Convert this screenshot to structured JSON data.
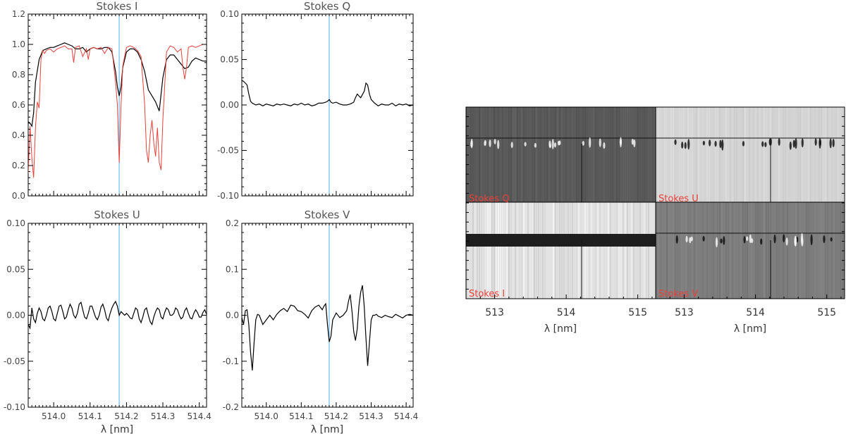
{
  "colors": {
    "axis": "#000000",
    "observed": "#000000",
    "reference": "#e8403a",
    "marker": "#4fb0e8",
    "image_label": "#e8403a"
  },
  "chart_data": [
    {
      "type": "line",
      "title": "Stokes I",
      "xlabel": "",
      "ylabel": "",
      "xlim": [
        513.93,
        514.42
      ],
      "ylim": [
        0.0,
        1.2
      ],
      "yticks": [
        0.0,
        0.2,
        0.4,
        0.6,
        0.8,
        1.0,
        1.2
      ],
      "ytick_labels": [
        "0.0",
        "0.2",
        "0.4",
        "0.6",
        "0.8",
        "1.0",
        "1.2"
      ],
      "xticks": [
        514.0,
        514.1,
        514.2,
        514.3,
        514.4
      ],
      "xtick_labels": [],
      "marker_x": 514.18,
      "series": [
        {
          "style": "observed",
          "x": [
            513.93,
            513.935,
            513.94,
            513.945,
            513.95,
            513.96,
            513.97,
            513.98,
            513.99,
            514.0,
            514.01,
            514.02,
            514.03,
            514.04,
            514.05,
            514.06,
            514.07,
            514.08,
            514.09,
            514.1,
            514.11,
            514.12,
            514.13,
            514.14,
            514.15,
            514.16,
            514.17,
            514.175,
            514.18,
            514.185,
            514.19,
            514.2,
            514.21,
            514.22,
            514.23,
            514.24,
            514.25,
            514.26,
            514.27,
            514.28,
            514.29,
            514.3,
            514.31,
            514.32,
            514.33,
            514.34,
            514.35,
            514.36,
            514.37,
            514.38,
            514.39,
            514.4,
            514.41,
            514.42
          ],
          "y": [
            0.49,
            0.48,
            0.46,
            0.55,
            0.75,
            0.9,
            0.96,
            0.97,
            0.98,
            0.98,
            0.99,
            1.0,
            1.01,
            1.0,
            0.99,
            0.97,
            0.97,
            0.98,
            0.95,
            0.97,
            0.98,
            0.97,
            0.97,
            0.98,
            0.98,
            0.95,
            0.82,
            0.72,
            0.66,
            0.72,
            0.85,
            0.95,
            0.97,
            0.97,
            0.95,
            0.9,
            0.82,
            0.7,
            0.66,
            0.62,
            0.56,
            0.78,
            0.9,
            0.93,
            0.93,
            0.9,
            0.87,
            0.84,
            0.85,
            0.89,
            0.91,
            0.9,
            0.89,
            0.89
          ]
        },
        {
          "style": "reference",
          "x": [
            513.93,
            513.935,
            513.94,
            513.945,
            513.95,
            513.955,
            513.96,
            513.965,
            513.97,
            513.975,
            513.98,
            513.99,
            514.0,
            514.01,
            514.02,
            514.03,
            514.04,
            514.05,
            514.055,
            514.06,
            514.07,
            514.08,
            514.09,
            514.095,
            514.1,
            514.11,
            514.12,
            514.13,
            514.14,
            514.15,
            514.16,
            514.17,
            514.175,
            514.18,
            514.185,
            514.19,
            514.2,
            514.21,
            514.22,
            514.23,
            514.24,
            514.25,
            514.255,
            514.26,
            514.265,
            514.27,
            514.275,
            514.28,
            514.285,
            514.29,
            514.295,
            514.3,
            514.31,
            514.32,
            514.33,
            514.34,
            514.35,
            514.355,
            514.36,
            514.365,
            514.37,
            514.38,
            514.39,
            514.4,
            514.41,
            514.42
          ],
          "y": [
            0.15,
            0.46,
            0.25,
            0.12,
            0.45,
            0.62,
            0.58,
            0.9,
            0.96,
            0.94,
            0.96,
            0.97,
            0.95,
            0.97,
            0.98,
            0.99,
            0.97,
            0.97,
            0.88,
            0.98,
            0.99,
            0.92,
            0.97,
            0.9,
            0.97,
            0.98,
            0.97,
            0.98,
            0.94,
            0.98,
            0.97,
            0.75,
            0.6,
            0.22,
            0.6,
            0.86,
            0.98,
            0.99,
            0.98,
            0.96,
            0.92,
            0.6,
            0.3,
            0.22,
            0.4,
            0.5,
            0.35,
            0.26,
            0.45,
            0.22,
            0.17,
            0.5,
            0.95,
            0.99,
            0.98,
            0.95,
            0.97,
            0.85,
            0.77,
            0.85,
            0.98,
            0.99,
            0.98,
            0.99,
            1.0,
            1.0
          ]
        }
      ]
    },
    {
      "type": "line",
      "title": "Stokes Q",
      "xlabel": "",
      "ylabel": "",
      "xlim": [
        513.93,
        514.42
      ],
      "ylim": [
        -0.1,
        0.1
      ],
      "yticks": [
        -0.1,
        -0.05,
        0.0,
        0.05,
        0.1
      ],
      "ytick_labels": [
        "-0.10",
        "-0.05",
        "0.00",
        "0.05",
        "0.10"
      ],
      "xticks": [
        514.0,
        514.1,
        514.2,
        514.3,
        514.4
      ],
      "xtick_labels": [],
      "marker_x": 514.18,
      "series": [
        {
          "style": "observed",
          "x": [
            513.93,
            513.935,
            513.94,
            513.945,
            513.95,
            513.955,
            513.96,
            513.97,
            513.98,
            513.99,
            514.0,
            514.01,
            514.02,
            514.03,
            514.04,
            514.05,
            514.06,
            514.07,
            514.08,
            514.09,
            514.1,
            514.11,
            514.12,
            514.13,
            514.14,
            514.15,
            514.16,
            514.17,
            514.175,
            514.18,
            514.185,
            514.19,
            514.2,
            514.21,
            514.22,
            514.23,
            514.24,
            514.25,
            514.255,
            514.26,
            514.265,
            514.27,
            514.28,
            514.285,
            514.29,
            514.295,
            514.3,
            514.31,
            514.32,
            514.33,
            514.34,
            514.35,
            514.36,
            514.37,
            514.38,
            514.39,
            514.4,
            514.41,
            514.42
          ],
          "y": [
            0.027,
            0.026,
            0.024,
            0.022,
            0.012,
            0.004,
            0.002,
            0.0,
            0.001,
            -0.001,
            0.001,
            0.0,
            -0.001,
            0.001,
            0.0,
            0.001,
            0.0,
            -0.001,
            0.001,
            0.0,
            0.002,
            0.0,
            0.001,
            -0.001,
            0.0,
            0.002,
            0.002,
            0.003,
            0.004,
            0.006,
            0.003,
            0.002,
            0.003,
            0.001,
            0.0,
            0.0,
            0.001,
            0.003,
            0.008,
            0.012,
            0.01,
            0.008,
            0.015,
            0.024,
            0.022,
            0.012,
            0.006,
            0.002,
            -0.001,
            0.001,
            0.0,
            0.0,
            0.002,
            -0.001,
            0.001,
            0.0,
            0.001,
            -0.001,
            0.0
          ]
        }
      ]
    },
    {
      "type": "line",
      "title": "Stokes U",
      "xlabel": "λ [nm]",
      "ylabel": "",
      "xlim": [
        513.93,
        514.42
      ],
      "ylim": [
        -0.1,
        0.1
      ],
      "yticks": [
        -0.1,
        -0.05,
        0.0,
        0.05,
        0.1
      ],
      "ytick_labels": [
        "-0.10",
        "-0.05",
        "0.00",
        "0.05",
        "0.10"
      ],
      "xticks": [
        514.0,
        514.1,
        514.2,
        514.3,
        514.4
      ],
      "xtick_labels": [
        "514.0",
        "514.1",
        "514.2",
        "514.3",
        "514.4"
      ],
      "marker_x": 514.18,
      "series": [
        {
          "style": "observed",
          "x": [
            513.93,
            513.935,
            513.94,
            513.945,
            513.95,
            513.955,
            513.96,
            513.965,
            513.97,
            513.975,
            513.98,
            513.985,
            513.99,
            513.995,
            514.0,
            514.005,
            514.01,
            514.015,
            514.02,
            514.025,
            514.03,
            514.035,
            514.04,
            514.045,
            514.05,
            514.055,
            514.06,
            514.065,
            514.07,
            514.075,
            514.08,
            514.085,
            514.09,
            514.095,
            514.1,
            514.105,
            514.11,
            514.115,
            514.12,
            514.125,
            514.13,
            514.135,
            514.14,
            514.145,
            514.15,
            514.155,
            514.16,
            514.165,
            514.17,
            514.175,
            514.18,
            514.185,
            514.19,
            514.195,
            514.2,
            514.205,
            514.21,
            514.215,
            514.22,
            514.225,
            514.23,
            514.235,
            514.24,
            514.245,
            514.25,
            514.255,
            514.26,
            514.265,
            514.27,
            514.275,
            514.28,
            514.285,
            514.29,
            514.295,
            514.3,
            514.305,
            514.31,
            514.315,
            514.32,
            514.325,
            514.33,
            514.335,
            514.34,
            514.345,
            514.35,
            514.355,
            514.36,
            514.365,
            514.37,
            514.375,
            514.38,
            514.385,
            514.39,
            514.395,
            514.4,
            514.405,
            514.41,
            514.415,
            514.42
          ],
          "y": [
            -0.01,
            -0.014,
            0.008,
            -0.004,
            -0.008,
            0.002,
            0.008,
            0.004,
            -0.004,
            -0.006,
            0.0,
            0.008,
            0.01,
            0.004,
            -0.004,
            -0.006,
            0.002,
            0.01,
            0.011,
            0.004,
            -0.004,
            -0.002,
            0.006,
            0.012,
            0.008,
            0.0,
            -0.003,
            0.002,
            0.012,
            0.014,
            0.006,
            -0.002,
            -0.004,
            0.002,
            0.01,
            0.01,
            0.004,
            -0.002,
            -0.005,
            0.0,
            0.009,
            0.012,
            0.006,
            -0.003,
            -0.006,
            0.002,
            0.008,
            0.012,
            0.015,
            0.01,
            0.0,
            0.004,
            0.002,
            0.0,
            0.002,
            0.0,
            -0.003,
            -0.004,
            0.002,
            0.008,
            0.006,
            -0.004,
            -0.008,
            -0.002,
            0.006,
            0.008,
            0.0,
            -0.007,
            -0.01,
            -0.002,
            0.004,
            0.008,
            0.006,
            -0.002,
            -0.004,
            0.003,
            0.008,
            0.006,
            0.0,
            0.0,
            0.002,
            0.008,
            0.006,
            0.0,
            -0.004,
            -0.002,
            0.005,
            0.008,
            0.002,
            -0.003,
            -0.004,
            0.002,
            0.006,
            0.003,
            -0.002,
            -0.002,
            0.003,
            0.006,
            0.001
          ]
        }
      ]
    },
    {
      "type": "line",
      "title": "Stokes V",
      "xlabel": "λ [nm]",
      "ylabel": "",
      "xlim": [
        513.93,
        514.42
      ],
      "ylim": [
        -0.2,
        0.2
      ],
      "yticks": [
        -0.2,
        -0.1,
        0.0,
        0.1,
        0.2
      ],
      "ytick_labels": [
        "-0.2",
        "-0.1",
        "0.0",
        "0.1",
        "0.2"
      ],
      "xticks": [
        514.0,
        514.1,
        514.2,
        514.3,
        514.4
      ],
      "xtick_labels": [
        "514.0",
        "514.1",
        "514.2",
        "514.3",
        "514.4"
      ],
      "marker_x": 514.18,
      "series": [
        {
          "style": "observed",
          "x": [
            513.93,
            513.935,
            513.94,
            513.945,
            513.95,
            513.955,
            513.96,
            513.965,
            513.97,
            513.975,
            513.98,
            513.99,
            514.0,
            514.01,
            514.02,
            514.03,
            514.04,
            514.05,
            514.06,
            514.07,
            514.08,
            514.09,
            514.1,
            514.11,
            514.12,
            514.13,
            514.14,
            514.15,
            514.16,
            514.165,
            514.17,
            514.175,
            514.18,
            514.185,
            514.19,
            514.2,
            514.21,
            514.22,
            514.23,
            514.235,
            514.24,
            514.245,
            514.25,
            514.255,
            514.26,
            514.265,
            514.27,
            514.275,
            514.28,
            514.285,
            514.29,
            514.295,
            514.3,
            514.305,
            514.31,
            514.315,
            514.32,
            514.33,
            514.34,
            514.35,
            514.36,
            514.37,
            514.38,
            514.39,
            514.4,
            514.41,
            514.42
          ],
          "y": [
            -0.005,
            -0.02,
            0.01,
            0.012,
            -0.02,
            -0.08,
            -0.12,
            -0.06,
            -0.01,
            0.002,
            0.0,
            -0.02,
            -0.01,
            0.0,
            -0.01,
            0.002,
            0.01,
            0.015,
            0.008,
            0.022,
            0.02,
            0.01,
            0.008,
            0.002,
            -0.006,
            0.01,
            0.018,
            0.022,
            0.012,
            0.02,
            0.025,
            -0.02,
            -0.058,
            -0.045,
            -0.01,
            0.005,
            -0.005,
            0.0,
            0.01,
            0.03,
            0.045,
            0.01,
            -0.035,
            -0.055,
            -0.03,
            0.02,
            0.05,
            0.065,
            0.02,
            -0.05,
            -0.11,
            -0.06,
            -0.01,
            0.0,
            0.0,
            0.002,
            -0.002,
            -0.005,
            0.0,
            -0.003,
            -0.005,
            0.002,
            -0.002,
            -0.006,
            0.0,
            0.002,
            0.0
          ]
        }
      ]
    },
    {
      "type": "heatmap",
      "title": "",
      "xlabel": "λ [nm]",
      "ylabel": "",
      "xlim": [
        512.6,
        515.25
      ],
      "xticks": [
        513,
        514,
        515
      ],
      "xtick_labels": [
        "513",
        "514",
        "515"
      ],
      "panels": [
        {
          "label": "Stokes Q",
          "position": "top-left",
          "background": "#5a5a5a",
          "band": "bright-spots"
        },
        {
          "label": "Stokes U",
          "position": "top-right",
          "background": "#d4d4d4",
          "band": "dark-spots"
        },
        {
          "label": "Stokes I",
          "position": "bottom-left",
          "background": "#e2e2e2",
          "band": "dark-stripe"
        },
        {
          "label": "Stokes V",
          "position": "bottom-right",
          "background": "#7d7d7d",
          "band": "bipolar-spots"
        }
      ]
    }
  ]
}
